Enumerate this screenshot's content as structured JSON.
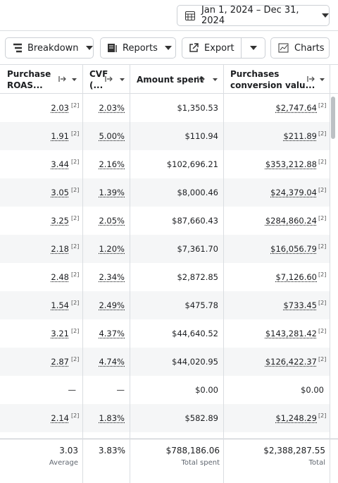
{
  "toolbar": {
    "date_range": "Jan 1, 2024 – Dec 31, 2024",
    "breakdown": "Breakdown",
    "reports": "Reports",
    "export": "Export",
    "charts": "Charts"
  },
  "table": {
    "headers": {
      "roas": [
        "Purchase",
        "ROAS..."
      ],
      "cvr": [
        "CVF",
        "(..."
      ],
      "amount_spent": "Amount spent",
      "conversion_value": [
        "Purchases",
        "conversion valu..."
      ]
    },
    "rows": [
      {
        "roas": "2.03",
        "roas_note": "[2]",
        "cvr": "2.03%",
        "amount_spent": "$1,350.53",
        "conversion_value": "$2,747.64",
        "value_note": "[2]"
      },
      {
        "roas": "1.91",
        "roas_note": "[2]",
        "cvr": "5.00%",
        "amount_spent": "$110.94",
        "conversion_value": "$211.89",
        "value_note": "[2]"
      },
      {
        "roas": "3.44",
        "roas_note": "[2]",
        "cvr": "2.16%",
        "amount_spent": "$102,696.21",
        "conversion_value": "$353,212.88",
        "value_note": "[2]"
      },
      {
        "roas": "3.05",
        "roas_note": "[2]",
        "cvr": "1.39%",
        "amount_spent": "$8,000.46",
        "conversion_value": "$24,379.04",
        "value_note": "[2]"
      },
      {
        "roas": "3.25",
        "roas_note": "[2]",
        "cvr": "2.05%",
        "amount_spent": "$87,660.43",
        "conversion_value": "$284,860.24",
        "value_note": "[2]"
      },
      {
        "roas": "2.18",
        "roas_note": "[2]",
        "cvr": "1.20%",
        "amount_spent": "$7,361.70",
        "conversion_value": "$16,056.79",
        "value_note": "[2]"
      },
      {
        "roas": "2.48",
        "roas_note": "[2]",
        "cvr": "2.34%",
        "amount_spent": "$2,872.85",
        "conversion_value": "$7,126.60",
        "value_note": "[2]"
      },
      {
        "roas": "1.54",
        "roas_note": "[2]",
        "cvr": "2.49%",
        "amount_spent": "$475.78",
        "conversion_value": "$733.45",
        "value_note": "[2]"
      },
      {
        "roas": "3.21",
        "roas_note": "[2]",
        "cvr": "4.37%",
        "amount_spent": "$44,640.52",
        "conversion_value": "$143,281.42",
        "value_note": "[2]"
      },
      {
        "roas": "2.87",
        "roas_note": "[2]",
        "cvr": "4.74%",
        "amount_spent": "$44,020.95",
        "conversion_value": "$126,422.37",
        "value_note": "[2]"
      },
      {
        "roas": "—",
        "cvr": "—",
        "amount_spent": "$0.00",
        "conversion_value": "$0.00"
      },
      {
        "roas": "2.14",
        "roas_note": "[2]",
        "cvr": "1.83%",
        "amount_spent": "$582.89",
        "conversion_value": "$1,248.29",
        "value_note": "[2]"
      }
    ],
    "footer": {
      "roas": "3.03",
      "roas_label": "Average",
      "cvr": "3.83%",
      "amount_spent": "$788,186.06",
      "amount_spent_label": "Total spent",
      "conversion_value": "$2,388,287.55",
      "conversion_value_label": "Total"
    }
  }
}
